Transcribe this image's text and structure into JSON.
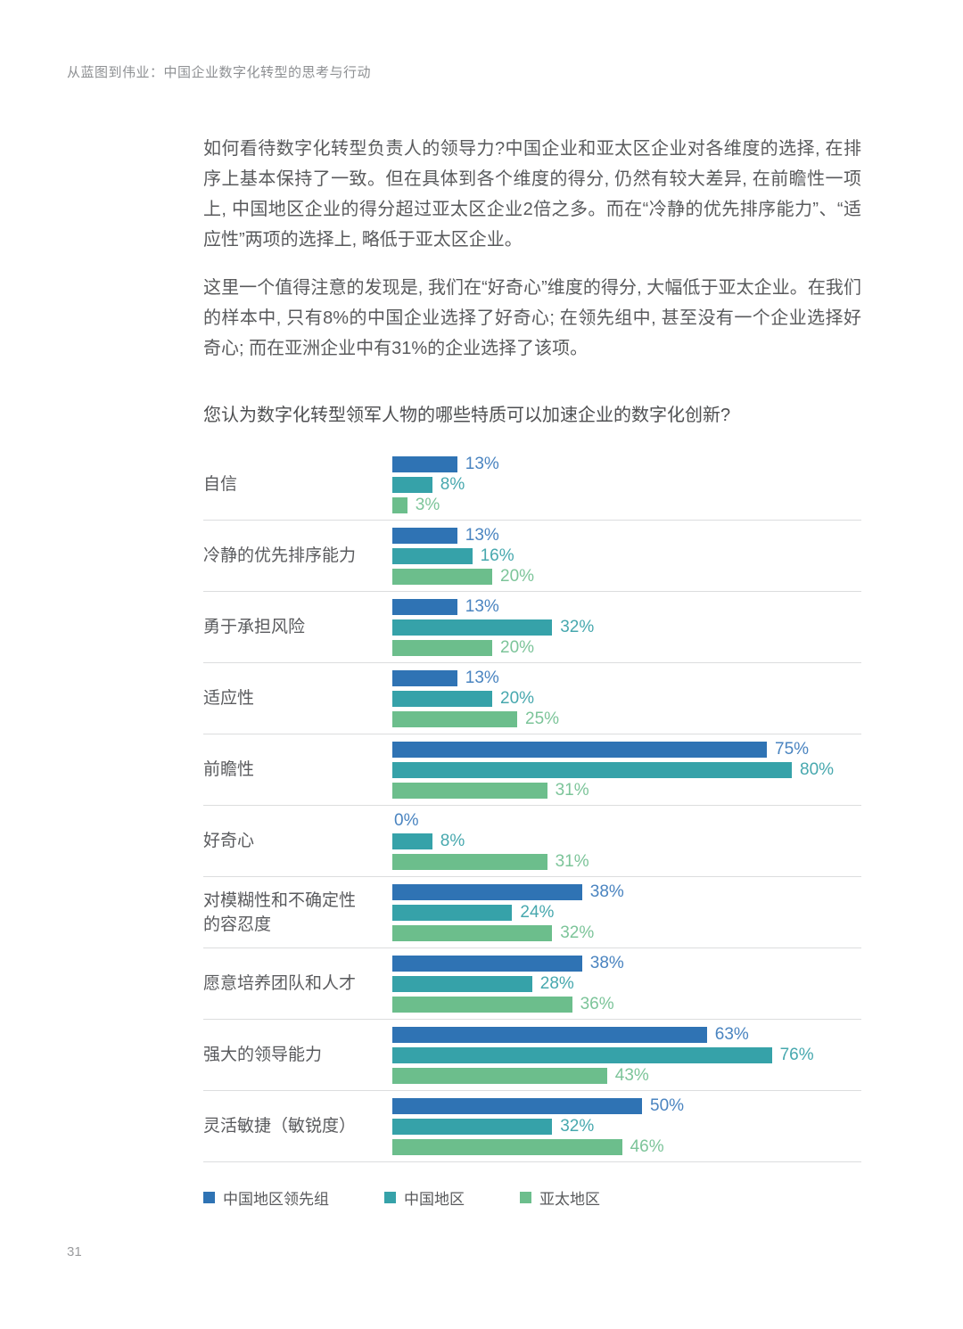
{
  "page": {
    "header": "从蓝图到伟业：中国企业数字化转型的思考与行动",
    "page_number": "31"
  },
  "paragraphs": [
    "如何看待数字化转型负责人的领导力?中国企业和亚太区企业对各维度的选择, 在排序上基本保持了一致。但在具体到各个维度的得分, 仍然有较大差异, 在前瞻性一项上, 中国地区企业的得分超过亚太区企业2倍之多。而在“冷静的优先排序能力”、“适应性”两项的选择上, 略低于亚太区企业。",
    "这里一个值得注意的发现是, 我们在“好奇心”维度的得分, 大幅低于亚太企业。在我们的样本中, 只有8%的中国企业选择了好奇心; 在领先组中, 甚至没有一个企业选择好奇心; 而在亚洲企业中有31%的企业选择了该项。"
  ],
  "chart_data": {
    "type": "bar",
    "orientation": "horizontal",
    "title": "您认为数字化转型领军人物的哪些特质可以加速企业的数字化创新?",
    "categories": [
      "自信",
      "冷静的优先排序能力",
      "勇于承担风险",
      "适应性",
      "前瞻性",
      "好奇心",
      "对模糊性和不确定性的容忍度",
      "愿意培养团队和人才",
      "强大的领导能力",
      "灵活敏捷（敏锐度）"
    ],
    "series": [
      {
        "name": "中国地区领先组",
        "color": "#2F73B4",
        "value_color": "#4A84C0",
        "values": [
          13,
          13,
          13,
          13,
          75,
          0,
          38,
          38,
          63,
          50
        ]
      },
      {
        "name": "中国地区",
        "color": "#36A2A9",
        "value_color": "#47A8AE",
        "values": [
          8,
          16,
          32,
          20,
          80,
          8,
          24,
          28,
          76,
          32
        ]
      },
      {
        "name": "亚太地区",
        "color": "#6CBE8C",
        "value_color": "#7CC499",
        "values": [
          3,
          20,
          20,
          25,
          31,
          31,
          32,
          36,
          43,
          46
        ]
      }
    ],
    "value_suffix": "%",
    "xlim": [
      0,
      100
    ],
    "grid": false,
    "legend_position": "bottom",
    "separator_color": "#DCDDDE"
  }
}
